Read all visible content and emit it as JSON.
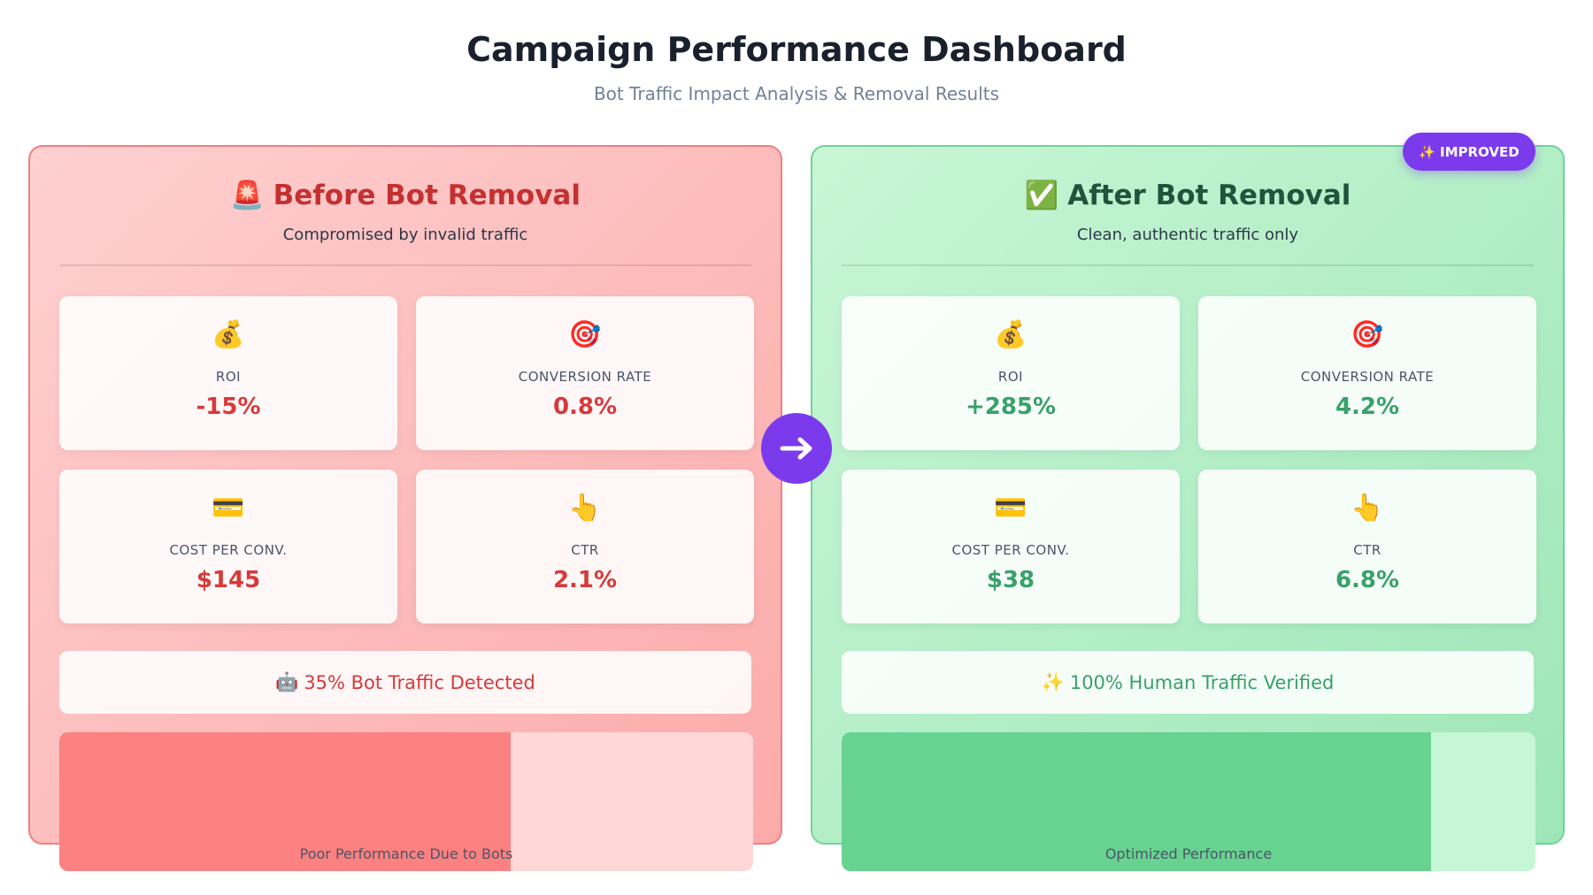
{
  "header": {
    "title": "Campaign Performance Dashboard",
    "subtitle": "Bot Traffic Impact Analysis & Removal Results"
  },
  "panels": [
    {
      "icon": "🚨",
      "title": "Before Bot Removal",
      "subtitle": "Compromised by invalid traffic",
      "metrics": [
        {
          "icon": "💰",
          "label": "ROI",
          "value": "-15%"
        },
        {
          "icon": "🎯",
          "label": "CONVERSION RATE",
          "value": "0.8%"
        },
        {
          "icon": "💳",
          "label": "COST PER CONV.",
          "value": "$145"
        },
        {
          "icon": "👆",
          "label": "CTR",
          "value": "2.1%"
        }
      ],
      "banner": {
        "icon": "🤖",
        "text": "35% Bot Traffic Detected"
      },
      "bar_label": "Poor Performance Due to Bots"
    },
    {
      "icon": "✅",
      "title": "After Bot Removal",
      "subtitle": "Clean, authentic traffic only",
      "badge": {
        "icon": "✨",
        "text": "IMPROVED"
      },
      "metrics": [
        {
          "icon": "💰",
          "label": "ROI",
          "value": "+285%"
        },
        {
          "icon": "🎯",
          "label": "CONVERSION RATE",
          "value": "4.2%"
        },
        {
          "icon": "💳",
          "label": "COST PER CONV.",
          "value": "$38"
        },
        {
          "icon": "👆",
          "label": "CTR",
          "value": "6.8%"
        }
      ],
      "banner": {
        "icon": "✨",
        "text": "100% Human Traffic Verified"
      },
      "bar_label": "Optimized Performance"
    }
  ]
}
